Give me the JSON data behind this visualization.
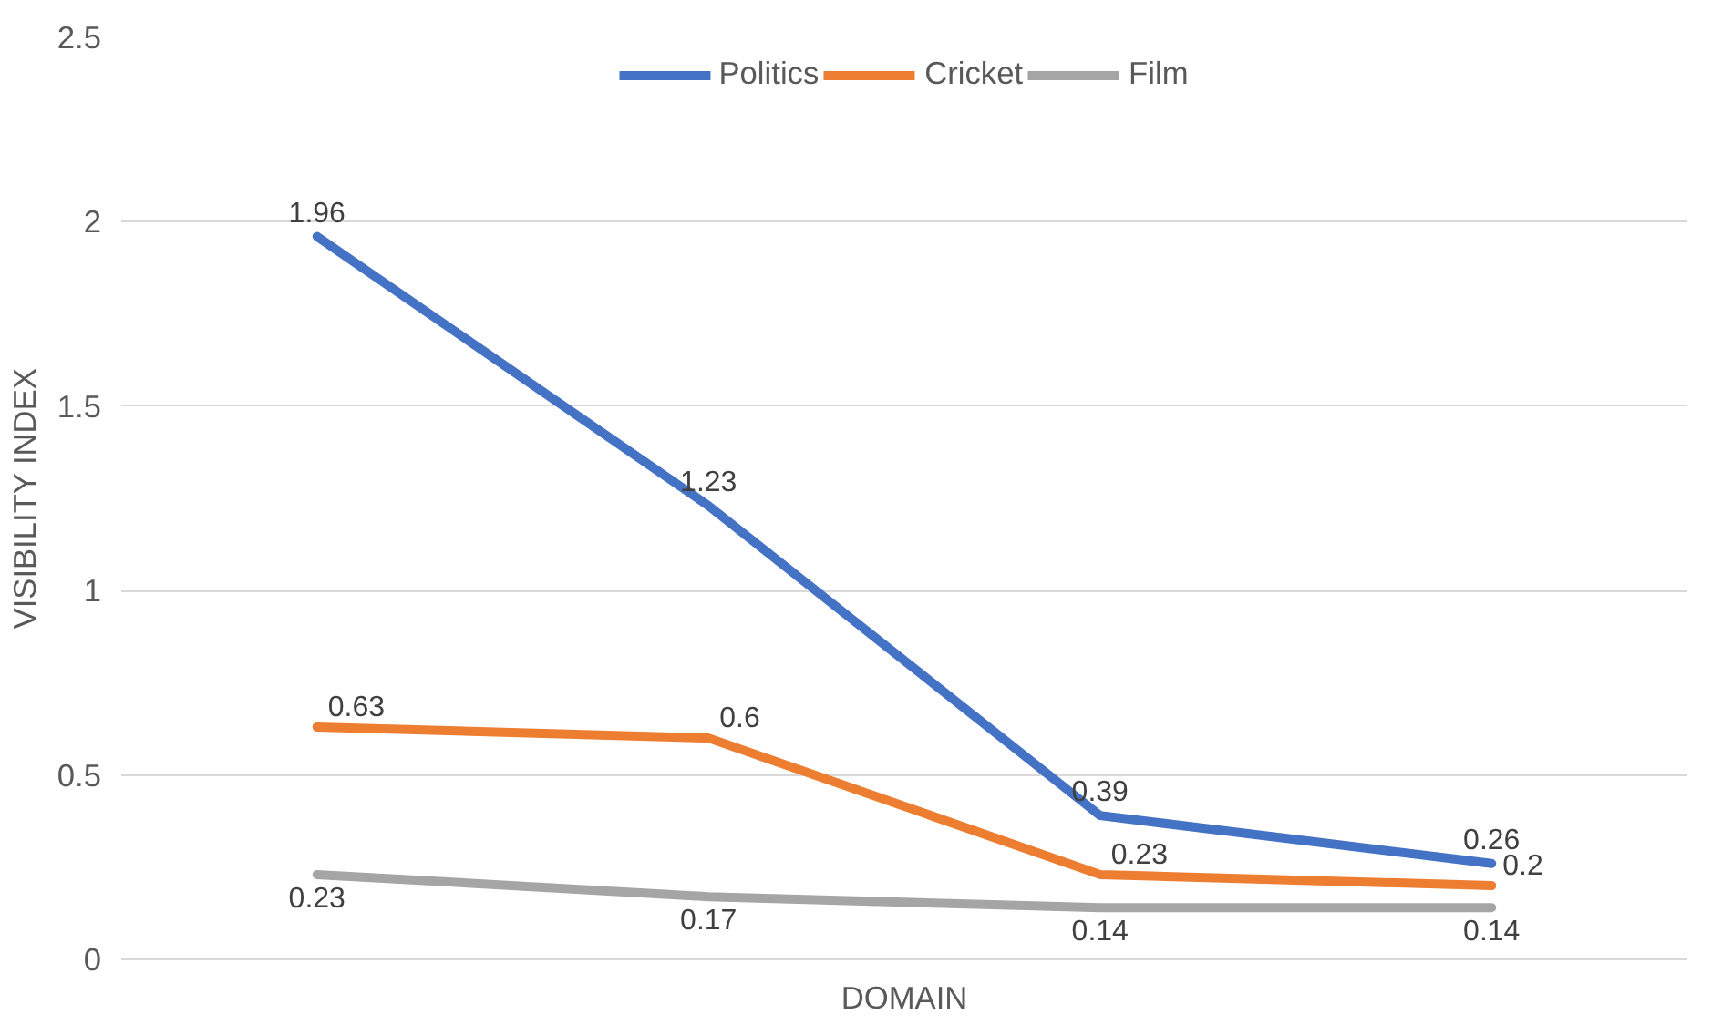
{
  "chart_data": {
    "type": "line",
    "xlabel": "DOMAIN",
    "ylabel": "VISIBILITY INDEX",
    "categories": [
      null,
      null,
      null,
      null
    ],
    "series": [
      {
        "name": "Politics",
        "color": "#4472c4",
        "values": [
          1.96,
          1.23,
          0.39,
          0.26
        ]
      },
      {
        "name": "Cricket",
        "color": "#ed7d31",
        "values": [
          0.63,
          0.6,
          0.23,
          0.2
        ]
      },
      {
        "name": "Film",
        "color": "#a5a5a5",
        "values": [
          0.23,
          0.17,
          0.14,
          0.14
        ]
      }
    ],
    "ylim": [
      0,
      2.5
    ],
    "yticks": [
      0,
      0.5,
      1,
      1.5,
      2,
      2.5
    ],
    "grid": "y",
    "legend": "top",
    "data_labels": true,
    "marker": "none",
    "line_style": "solid"
  }
}
